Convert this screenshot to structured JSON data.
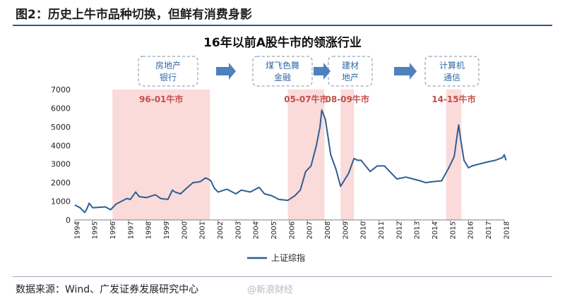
{
  "figure_title": "图2：历史上牛市品种切换，但鲜有消费身影",
  "source_note": "数据来源：Wind、广发证券发展研究中心",
  "watermark": "@新浪财经",
  "colors": {
    "line": "#2e5f93",
    "band": "#fbdada",
    "band_label": "#c0504d",
    "arrow": "#4f81bd",
    "box_text": "#2e6aa8",
    "box_border": "#7f8fa6"
  },
  "chart_data": {
    "type": "line",
    "title": "16年以前A股牛市的领涨行业",
    "ylim": [
      0,
      7000
    ],
    "yticks": [
      0,
      1000,
      2000,
      3000,
      4000,
      5000,
      6000,
      7000
    ],
    "xlim": [
      1994,
      2018
    ],
    "xticks": [
      "1994",
      "1995",
      "1996",
      "1997",
      "1998",
      "1999",
      "2000",
      "2001",
      "2002",
      "2003",
      "2004",
      "2005",
      "2006",
      "2007",
      "2008",
      "2009",
      "2010",
      "2011",
      "2012",
      "2013",
      "2014",
      "2015",
      "2016",
      "2017",
      "2018"
    ],
    "series": [
      {
        "name": "上证综指",
        "x": [
          1994.0,
          1994.3,
          1994.55,
          1994.65,
          1994.8,
          1995.0,
          1995.4,
          1995.7,
          1996.0,
          1996.3,
          1996.6,
          1996.9,
          1997.1,
          1997.4,
          1997.6,
          1998.0,
          1998.5,
          1998.8,
          1999.2,
          1999.45,
          1999.6,
          1999.9,
          2000.3,
          2000.6,
          2001.0,
          2001.3,
          2001.45,
          2001.6,
          2001.8,
          2002.0,
          2002.5,
          2003.0,
          2003.3,
          2003.8,
          2004.0,
          2004.3,
          2004.6,
          2005.0,
          2005.4,
          2005.9,
          2006.3,
          2006.6,
          2006.9,
          2007.2,
          2007.5,
          2007.7,
          2007.8,
          2008.0,
          2008.3,
          2008.6,
          2008.85,
          2009.3,
          2009.6,
          2009.8,
          2010.0,
          2010.5,
          2010.9,
          2011.3,
          2011.7,
          2012.0,
          2012.5,
          2012.9,
          2013.3,
          2013.6,
          2014.0,
          2014.5,
          2014.9,
          2015.2,
          2015.45,
          2015.6,
          2015.75,
          2016.0,
          2016.2,
          2016.6,
          2017.0,
          2017.5,
          2017.9,
          2018.0,
          2018.1
        ],
        "values": [
          800,
          650,
          400,
          550,
          900,
          650,
          680,
          700,
          550,
          850,
          1000,
          1150,
          1100,
          1500,
          1250,
          1200,
          1350,
          1150,
          1100,
          1600,
          1500,
          1400,
          1750,
          2000,
          2050,
          2250,
          2200,
          2100,
          1700,
          1500,
          1650,
          1400,
          1600,
          1500,
          1600,
          1750,
          1400,
          1300,
          1100,
          1050,
          1300,
          1600,
          2600,
          2900,
          4000,
          5000,
          5900,
          5400,
          3500,
          2700,
          1800,
          2500,
          3300,
          3200,
          3200,
          2600,
          2900,
          2900,
          2500,
          2200,
          2300,
          2200,
          2100,
          2000,
          2050,
          2100,
          2800,
          3400,
          5100,
          4100,
          3200,
          2800,
          2900,
          3000,
          3100,
          3200,
          3350,
          3500,
          3200
        ]
      }
    ],
    "bands": [
      {
        "label": "96-01牛市",
        "x0": 1996.1,
        "x1": 2001.55
      },
      {
        "label": "05-07牛市",
        "x0": 2005.9,
        "x1": 2007.95
      },
      {
        "label": "08-09牛市",
        "x0": 2008.85,
        "x1": 2009.6
      },
      {
        "label": "14-15牛市",
        "x0": 2014.75,
        "x1": 2015.6
      }
    ],
    "annotation_boxes": [
      {
        "line1": "房地产",
        "line2": "银行"
      },
      {
        "line1": "煤飞色舞",
        "line2": "金融"
      },
      {
        "line1": "建材",
        "line2": "地产"
      },
      {
        "line1": "计算机",
        "line2": "通信"
      }
    ],
    "legend": {
      "position": "bottom-center"
    }
  }
}
